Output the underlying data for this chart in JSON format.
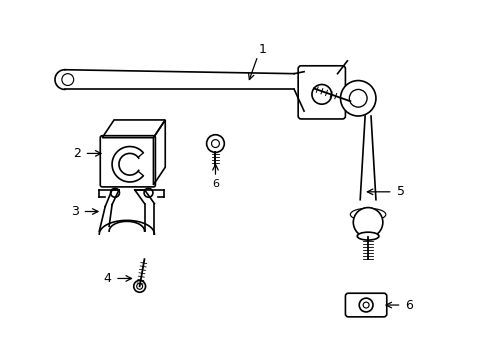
{
  "bg_color": "#ffffff",
  "line_color": "#000000",
  "line_width": 1.2,
  "fig_width": 4.9,
  "fig_height": 3.6,
  "dpi": 100
}
